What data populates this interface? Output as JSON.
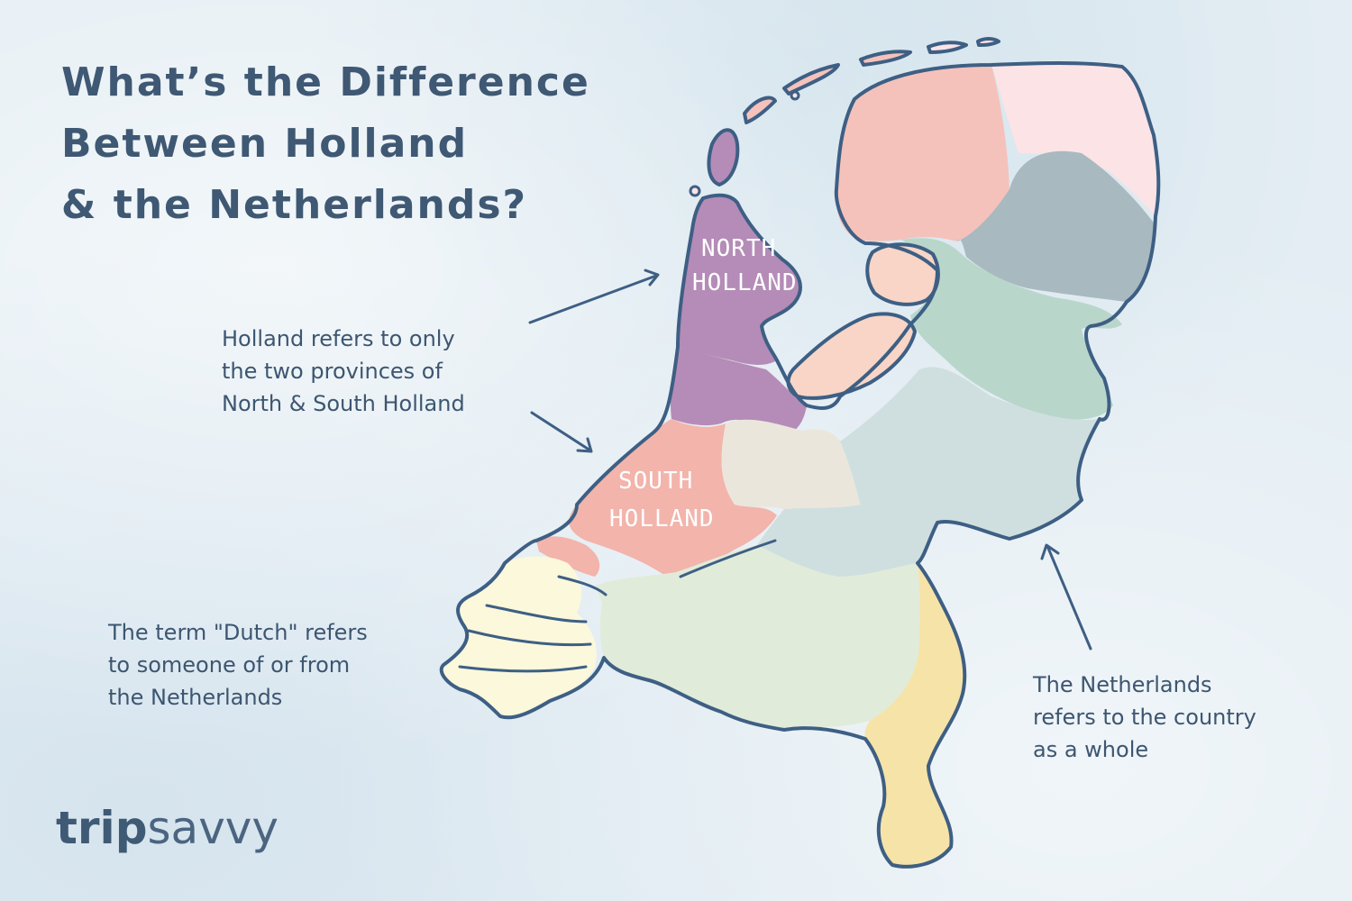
{
  "title": {
    "line1": "What’s the Difference",
    "line2": "Between Holland",
    "line3": "& the Netherlands?"
  },
  "captions": {
    "holland": {
      "line1": "Holland refers to only",
      "line2": "the two provinces of",
      "line3": "North & South Holland"
    },
    "dutch": {
      "line1": "The term \"Dutch\" refers",
      "line2": "to someone of or from",
      "line3": "the Netherlands"
    },
    "netherlands": {
      "line1": "The Netherlands",
      "line2": "refers to the country",
      "line3": "as a whole"
    }
  },
  "map_labels": {
    "north_holland_1": "NORTH",
    "north_holland_2": "HOLLAND",
    "south_holland_1": "SOUTH",
    "south_holland_2": "HOLLAND"
  },
  "logo": {
    "part1": "trip",
    "part2": "savvy"
  },
  "colors": {
    "outline": "#3e5f84",
    "text": "#3d5670",
    "north_holland": "#b48cb7",
    "south_holland": "#f2b4ab",
    "groningen": "#fbe3e6",
    "friesland": "#f4c2bb",
    "drenthe": "#a9b9c0",
    "overijssel": "#b9d6cb",
    "gelderland": "#cfdfe0",
    "utrecht": "#ebe6dc",
    "flevoland": "#f8d5c6",
    "zeeland": "#fbf8db",
    "north_brabant": "#e1ebd9",
    "limburg": "#f6e3a8"
  }
}
